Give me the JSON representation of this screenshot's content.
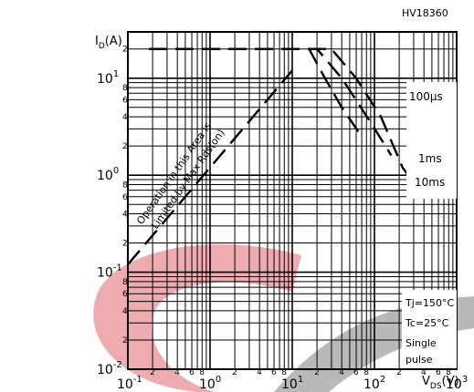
{
  "chart_data": {
    "type": "line",
    "title": "",
    "part_number": "HV18360",
    "xlabel": "V_DS(V)",
    "ylabel": "I_D(A)",
    "x_scale": "log",
    "y_scale": "log",
    "xlim": [
      0.1,
      1000
    ],
    "ylim": [
      0.01,
      30
    ],
    "grid": true,
    "x_ticks": [
      {
        "mant": "10",
        "exp": "-1"
      },
      {
        "mant": "10",
        "exp": "0"
      },
      {
        "mant": "10",
        "exp": "1"
      },
      {
        "mant": "10",
        "exp": "2"
      },
      {
        "mant": "10",
        "exp": "3"
      }
    ],
    "y_ticks": [
      {
        "mant": "10",
        "exp": "-2"
      },
      {
        "mant": "10",
        "exp": "-1"
      },
      {
        "mant": "10",
        "exp": "0"
      },
      {
        "mant": "10",
        "exp": "1"
      }
    ],
    "minor_tick_labels": [
      "2",
      "4",
      "6",
      "8"
    ],
    "series": [
      {
        "name": "Operation in this Area is Limited by Max Rds(on)",
        "points": [
          [
            0.1,
            0.12
          ],
          [
            10,
            12
          ]
        ]
      },
      {
        "name": "100µs",
        "points": [
          [
            0.18,
            20
          ],
          [
            10,
            20
          ],
          [
            16,
            20
          ],
          [
            25,
            10
          ],
          [
            40,
            5
          ],
          [
            70,
            2.5
          ]
        ]
      },
      {
        "name": "1ms",
        "points": [
          [
            0.18,
            20
          ],
          [
            10,
            20
          ],
          [
            20,
            20
          ],
          [
            40,
            10
          ],
          [
            90,
            3.5
          ],
          [
            160,
            1.6
          ]
        ]
      },
      {
        "name": "10ms",
        "points": [
          [
            0.18,
            20
          ],
          [
            10,
            20
          ],
          [
            30,
            20
          ],
          [
            60,
            10
          ],
          [
            120,
            4
          ],
          [
            220,
            1.2
          ],
          [
            400,
            0.6
          ]
        ]
      }
    ],
    "annotations": {
      "rds_line1": "Operation in this Area is",
      "rds_line2": "Limited by Max Rds(on)",
      "label_100us": "100µs",
      "label_1ms": "1ms",
      "label_10ms": "10ms",
      "conditions": [
        "Tj=150°C",
        "Tc=25°C",
        "Single",
        "pulse"
      ]
    }
  }
}
